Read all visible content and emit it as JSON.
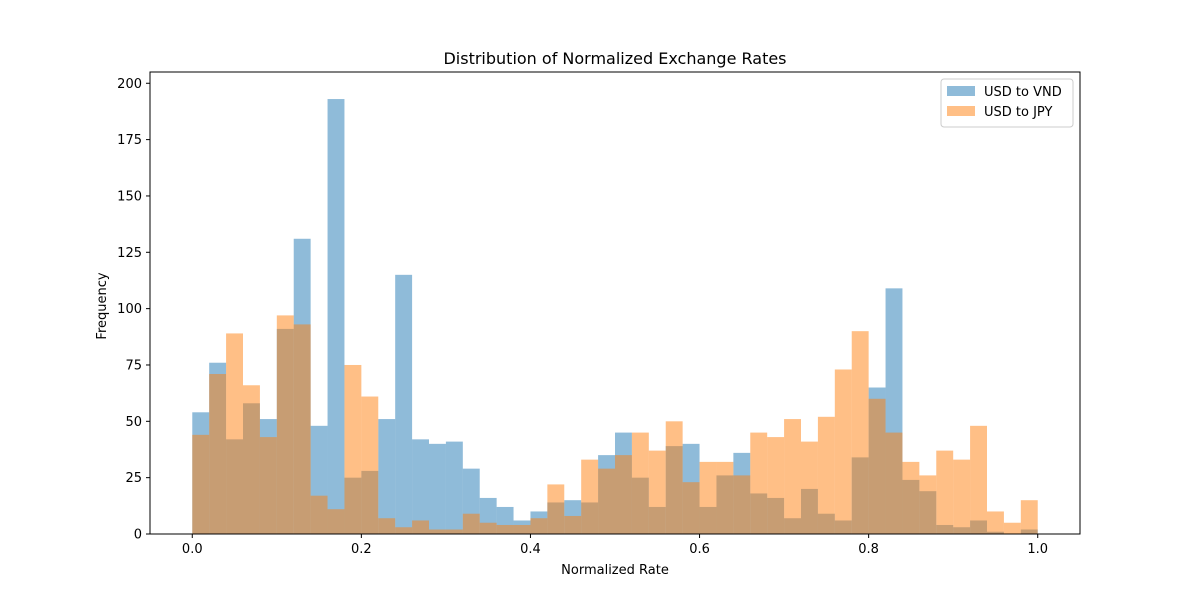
{
  "chart_data": {
    "type": "bar",
    "title": "Distribution of Normalized Exchange Rates",
    "xlabel": "Normalized Rate",
    "ylabel": "Frequency",
    "xlim": [
      -0.05,
      1.05
    ],
    "ylim": [
      0,
      205
    ],
    "xticks": [
      0.0,
      0.2,
      0.4,
      0.6,
      0.8,
      1.0
    ],
    "xtick_labels": [
      "0.0",
      "0.2",
      "0.4",
      "0.6",
      "0.8",
      "1.0"
    ],
    "yticks": [
      0,
      25,
      50,
      75,
      100,
      125,
      150,
      175,
      200
    ],
    "ytick_labels": [
      "0",
      "25",
      "50",
      "75",
      "100",
      "125",
      "150",
      "175",
      "200"
    ],
    "bins": 50,
    "bin_range": [
      0,
      1
    ],
    "legend_position": "top-right",
    "grid": false,
    "series": [
      {
        "name": "USD to VND",
        "color": "#1f77b4",
        "alpha": 0.5,
        "values": [
          54,
          76,
          42,
          58,
          51,
          91,
          131,
          48,
          193,
          25,
          28,
          51,
          115,
          42,
          40,
          41,
          29,
          16,
          12,
          6,
          10,
          14,
          15,
          14,
          35,
          45,
          25,
          12,
          39,
          40,
          12,
          26,
          36,
          18,
          16,
          7,
          20,
          9,
          6,
          34,
          65,
          109,
          24,
          19,
          4,
          3,
          6,
          1,
          0,
          2
        ]
      },
      {
        "name": "USD to JPY",
        "color": "#ff7f0e",
        "alpha": 0.5,
        "values": [
          44,
          71,
          89,
          66,
          43,
          97,
          93,
          17,
          11,
          75,
          61,
          7,
          3,
          6,
          2,
          2,
          9,
          5,
          4,
          4,
          7,
          22,
          8,
          33,
          29,
          35,
          45,
          37,
          50,
          23,
          32,
          32,
          26,
          45,
          43,
          51,
          41,
          52,
          73,
          90,
          60,
          45,
          32,
          26,
          37,
          33,
          48,
          10,
          5,
          15
        ]
      }
    ]
  }
}
